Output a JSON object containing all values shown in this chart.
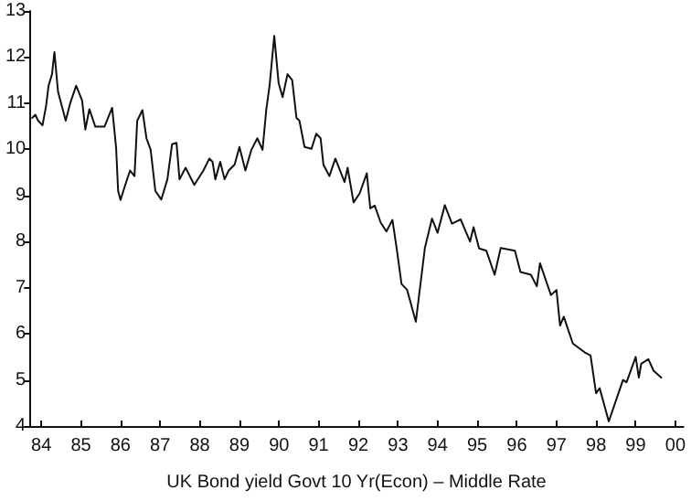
{
  "chart_data": {
    "type": "line",
    "xlabel": "UK Bond yield Govt 10 Yr(Econ) – Middle Rate",
    "x": [
      "1984-04-08",
      "1984-05-07",
      "1984-06-02",
      "1984-07-12",
      "1984-08-14",
      "1984-09-06",
      "1984-10-08",
      "1984-10-30",
      "1984-12-02",
      "1985-02-11",
      "1985-03-24",
      "1985-05-18",
      "1985-07-12",
      "1985-08-11",
      "1985-09-17",
      "1985-11-11",
      "1986-02-03",
      "1986-04-15",
      "1986-05-21",
      "1986-06-09",
      "1986-07-01",
      "1986-08-14",
      "1986-09-27",
      "1986-11-07",
      "1986-12-02",
      "1987-01-19",
      "1987-02-25",
      "1987-04-05",
      "1987-05-18",
      "1987-07-12",
      "1987-09-06",
      "1987-10-19",
      "1987-11-29",
      "1987-12-27",
      "1988-02-21",
      "1988-05-11",
      "1988-08-03",
      "1988-09-27",
      "1988-10-26",
      "1988-11-21",
      "1989-01-05",
      "1989-02-14",
      "1989-03-24",
      "1989-05-18",
      "1989-07-01",
      "1989-08-25",
      "1989-10-19",
      "1989-12-13",
      "1990-01-30",
      "1990-03-06",
      "1990-04-05",
      "1990-05-18",
      "1990-06-27",
      "1990-08-03",
      "1990-09-17",
      "1990-10-30",
      "1990-12-09",
      "1991-01-05",
      "1991-02-21",
      "1991-04-26",
      "1991-06-09",
      "1991-07-19",
      "1991-08-14",
      "1991-10-08",
      "1991-12-02",
      "1992-02-25",
      "1992-03-24",
      "1992-05-18",
      "1992-07-12",
      "1992-09-17",
      "1992-10-19",
      "1992-11-29",
      "1993-01-23",
      "1993-03-17",
      "1993-05-11",
      "1993-06-20",
      "1993-08-03",
      "1993-09-24",
      "1993-12-13",
      "1994-03-06",
      "1994-05-11",
      "1994-07-01",
      "1994-09-06",
      "1994-11-11",
      "1995-01-30",
      "1995-04-26",
      "1995-05-29",
      "1995-07-19",
      "1995-09-24",
      "1995-12-09",
      "1996-02-03",
      "1996-06-13",
      "1996-08-03",
      "1996-11-07",
      "1997-01-01",
      "1997-01-30",
      "1997-05-11",
      "1997-07-01",
      "1997-08-03",
      "1997-09-06",
      "1997-11-29",
      "1998-03-17",
      "1998-05-11",
      "1998-07-01",
      "1998-08-03",
      "1998-10-26",
      "1999-03-06",
      "1999-04-08",
      "1999-07-01",
      "1999-07-30",
      "1999-08-21",
      "1999-10-26",
      "1999-12-13",
      "2000-02-21"
    ],
    "series": [
      {
        "color": "#111111",
        "values": [
          10.68,
          10.75,
          10.62,
          10.52,
          10.94,
          11.38,
          11.63,
          12.11,
          11.25,
          10.62,
          11.0,
          11.38,
          11.06,
          10.43,
          10.87,
          10.49,
          10.49,
          10.9,
          10.05,
          9.1,
          8.9,
          9.23,
          9.54,
          9.42,
          10.62,
          10.85,
          10.24,
          9.99,
          9.1,
          8.91,
          9.35,
          10.11,
          10.14,
          9.35,
          9.6,
          9.23,
          9.54,
          9.8,
          9.73,
          9.35,
          9.73,
          9.35,
          9.54,
          9.67,
          10.05,
          9.54,
          9.99,
          10.24,
          9.99,
          10.87,
          11.38,
          12.46,
          11.44,
          11.13,
          11.63,
          11.5,
          10.68,
          10.62,
          10.05,
          10.01,
          10.34,
          10.24,
          9.67,
          9.42,
          9.8,
          9.29,
          9.6,
          8.85,
          9.04,
          9.48,
          8.72,
          8.78,
          8.41,
          8.22,
          8.47,
          7.84,
          7.08,
          6.95,
          6.26,
          7.86,
          8.5,
          8.19,
          8.79,
          8.39,
          8.48,
          8.0,
          8.31,
          7.85,
          7.8,
          7.28,
          7.86,
          7.8,
          7.34,
          7.28,
          7.03,
          7.53,
          6.84,
          6.95,
          6.18,
          6.37,
          5.79,
          5.6,
          5.53,
          4.71,
          4.82,
          4.1,
          5.0,
          4.95,
          5.5,
          5.05,
          5.35,
          5.45,
          5.2,
          5.05
        ]
      }
    ],
    "xlim": [
      "1984-03-14",
      "2000-09-13"
    ],
    "xticks": [
      {
        "value": "1984-07-01",
        "label": "84"
      },
      {
        "value": "1985-07-01",
        "label": "85"
      },
      {
        "value": "1986-07-01",
        "label": "86"
      },
      {
        "value": "1987-07-01",
        "label": "87"
      },
      {
        "value": "1988-07-01",
        "label": "88"
      },
      {
        "value": "1989-07-01",
        "label": "89"
      },
      {
        "value": "1990-07-01",
        "label": "90"
      },
      {
        "value": "1991-07-01",
        "label": "91"
      },
      {
        "value": "1992-07-01",
        "label": "92"
      },
      {
        "value": "1993-07-01",
        "label": "93"
      },
      {
        "value": "1994-07-01",
        "label": "94"
      },
      {
        "value": "1995-07-01",
        "label": "95"
      },
      {
        "value": "1996-07-01",
        "label": "96"
      },
      {
        "value": "1997-07-01",
        "label": "97"
      },
      {
        "value": "1998-07-01",
        "label": "98"
      },
      {
        "value": "1999-07-01",
        "label": "99"
      },
      {
        "value": "2000-07-01",
        "label": "00"
      }
    ],
    "ylim": [
      4,
      13
    ],
    "yticks": [
      4,
      5,
      6,
      7,
      8,
      9,
      10,
      11,
      12,
      13
    ],
    "marker": "none",
    "line_style": "solid"
  }
}
